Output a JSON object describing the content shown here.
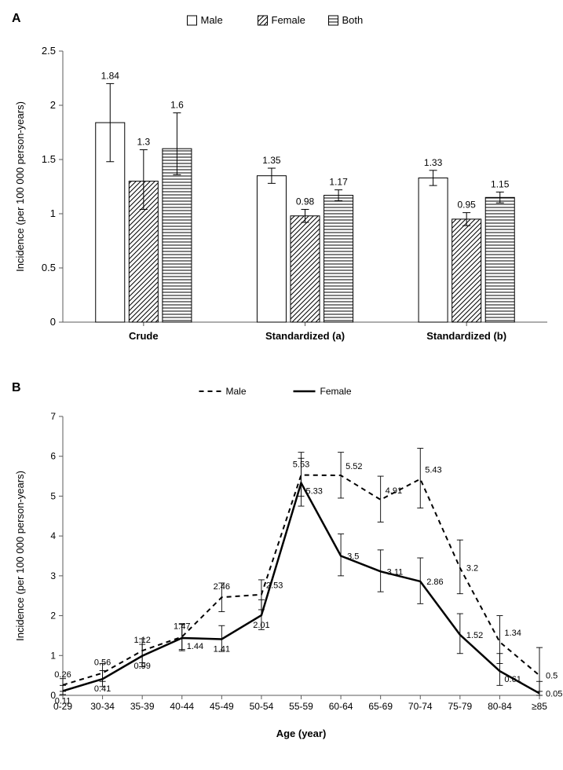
{
  "panelA": {
    "label": "A",
    "type": "bar",
    "ylabel": "Incidence (per 100 000 person-years)",
    "ylim": [
      0,
      2.5
    ],
    "ytick_step": 0.5,
    "groups": [
      "Crude",
      "Standardized (a)",
      "Standardized (b)"
    ],
    "series": [
      {
        "name": "Male",
        "pattern": "none",
        "color": "#ffffff",
        "border": "#000000"
      },
      {
        "name": "Female",
        "pattern": "diag",
        "color": "#ffffff",
        "border": "#000000"
      },
      {
        "name": "Both",
        "pattern": "horizontal",
        "color": "#ffffff",
        "border": "#000000"
      }
    ],
    "data": [
      {
        "group": "Crude",
        "values": [
          1.84,
          1.3,
          1.6
        ],
        "err": [
          [
            1.48,
            2.2
          ],
          [
            1.04,
            1.59
          ],
          [
            1.36,
            1.93
          ]
        ],
        "labels": [
          "1.84",
          "1.3",
          "1.6"
        ]
      },
      {
        "group": "Standardized (a)",
        "values": [
          1.35,
          0.98,
          1.17
        ],
        "err": [
          [
            1.28,
            1.42
          ],
          [
            0.92,
            1.04
          ],
          [
            1.12,
            1.22
          ]
        ],
        "labels": [
          "1.35",
          "0.98",
          "1.17"
        ]
      },
      {
        "group": "Standardized (b)",
        "values": [
          1.33,
          0.95,
          1.15
        ],
        "err": [
          [
            1.26,
            1.4
          ],
          [
            0.89,
            1.01
          ],
          [
            1.1,
            1.2
          ]
        ],
        "labels": [
          "1.33",
          "0.95",
          "1.15"
        ]
      }
    ],
    "label_fontsize": 13,
    "tick_fontsize": 13,
    "value_fontsize": 12
  },
  "panelB": {
    "label": "B",
    "type": "line",
    "ylabel": "Incidence (per 100 000 person-years)",
    "xlabel": "Age (year)",
    "ylim": [
      0,
      7
    ],
    "ytick_step": 1,
    "categories": [
      "0-29",
      "30-34",
      "35-39",
      "40-44",
      "45-49",
      "50-54",
      "55-59",
      "60-64",
      "65-69",
      "70-74",
      "75-79",
      "80-84",
      "≥85"
    ],
    "series": [
      {
        "name": "Male",
        "dash": "6,5",
        "color": "#000000",
        "width": 2,
        "values": [
          0.26,
          0.56,
          1.12,
          1.47,
          2.46,
          2.53,
          5.53,
          5.52,
          4.91,
          5.43,
          3.2,
          1.34,
          0.5
        ],
        "err": [
          [
            0.1,
            0.42
          ],
          [
            0.35,
            0.8
          ],
          [
            0.82,
            1.42
          ],
          [
            1.15,
            1.8
          ],
          [
            2.1,
            2.82
          ],
          [
            2.15,
            2.9
          ],
          [
            5.0,
            6.1
          ],
          [
            4.95,
            6.1
          ],
          [
            4.35,
            5.5
          ],
          [
            4.7,
            6.2
          ],
          [
            2.55,
            3.9
          ],
          [
            0.8,
            2.0
          ],
          [
            0.1,
            1.2
          ]
        ],
        "labels": [
          "0.26",
          "0.56",
          "1.12",
          "1.47",
          "2.46",
          "2.53",
          "5.53",
          "5.52",
          "4.91",
          "5.43",
          "3.2",
          "1.34",
          "0.5"
        ],
        "labelPos": [
          "above",
          "above",
          "above",
          "above",
          "above",
          "above-right",
          "above",
          "above-right",
          "above-right",
          "above-right",
          "right",
          "above-right",
          "right"
        ]
      },
      {
        "name": "Female",
        "dash": "",
        "color": "#000000",
        "width": 2.5,
        "values": [
          0.11,
          0.41,
          0.99,
          1.44,
          1.41,
          2.01,
          5.33,
          3.5,
          3.11,
          2.86,
          1.52,
          0.61,
          0.05
        ],
        "err": [
          [
            0.02,
            0.25
          ],
          [
            0.22,
            0.62
          ],
          [
            0.72,
            1.28
          ],
          [
            1.12,
            1.78
          ],
          [
            1.1,
            1.75
          ],
          [
            1.65,
            2.4
          ],
          [
            4.75,
            5.95
          ],
          [
            3.0,
            4.05
          ],
          [
            2.6,
            3.65
          ],
          [
            2.3,
            3.45
          ],
          [
            1.05,
            2.05
          ],
          [
            0.25,
            1.05
          ],
          [
            0.0,
            0.35
          ]
        ],
        "labels": [
          "0.11",
          "0.41",
          "0.99",
          "1.44",
          "1.41",
          "2.01",
          "5.33",
          "3.5",
          "3.11",
          "2.86",
          "1.52",
          "0.61",
          "0.05"
        ],
        "labelPos": [
          "below",
          "below",
          "below",
          "below-right",
          "below",
          "below",
          "below-right",
          "right",
          "right",
          "right",
          "right",
          "below-right",
          "right"
        ]
      }
    ],
    "label_fontsize": 13,
    "tick_fontsize": 12,
    "value_fontsize": 11
  },
  "colors": {
    "axis": "#5b5b5b",
    "text": "#000000",
    "bg": "#ffffff"
  }
}
